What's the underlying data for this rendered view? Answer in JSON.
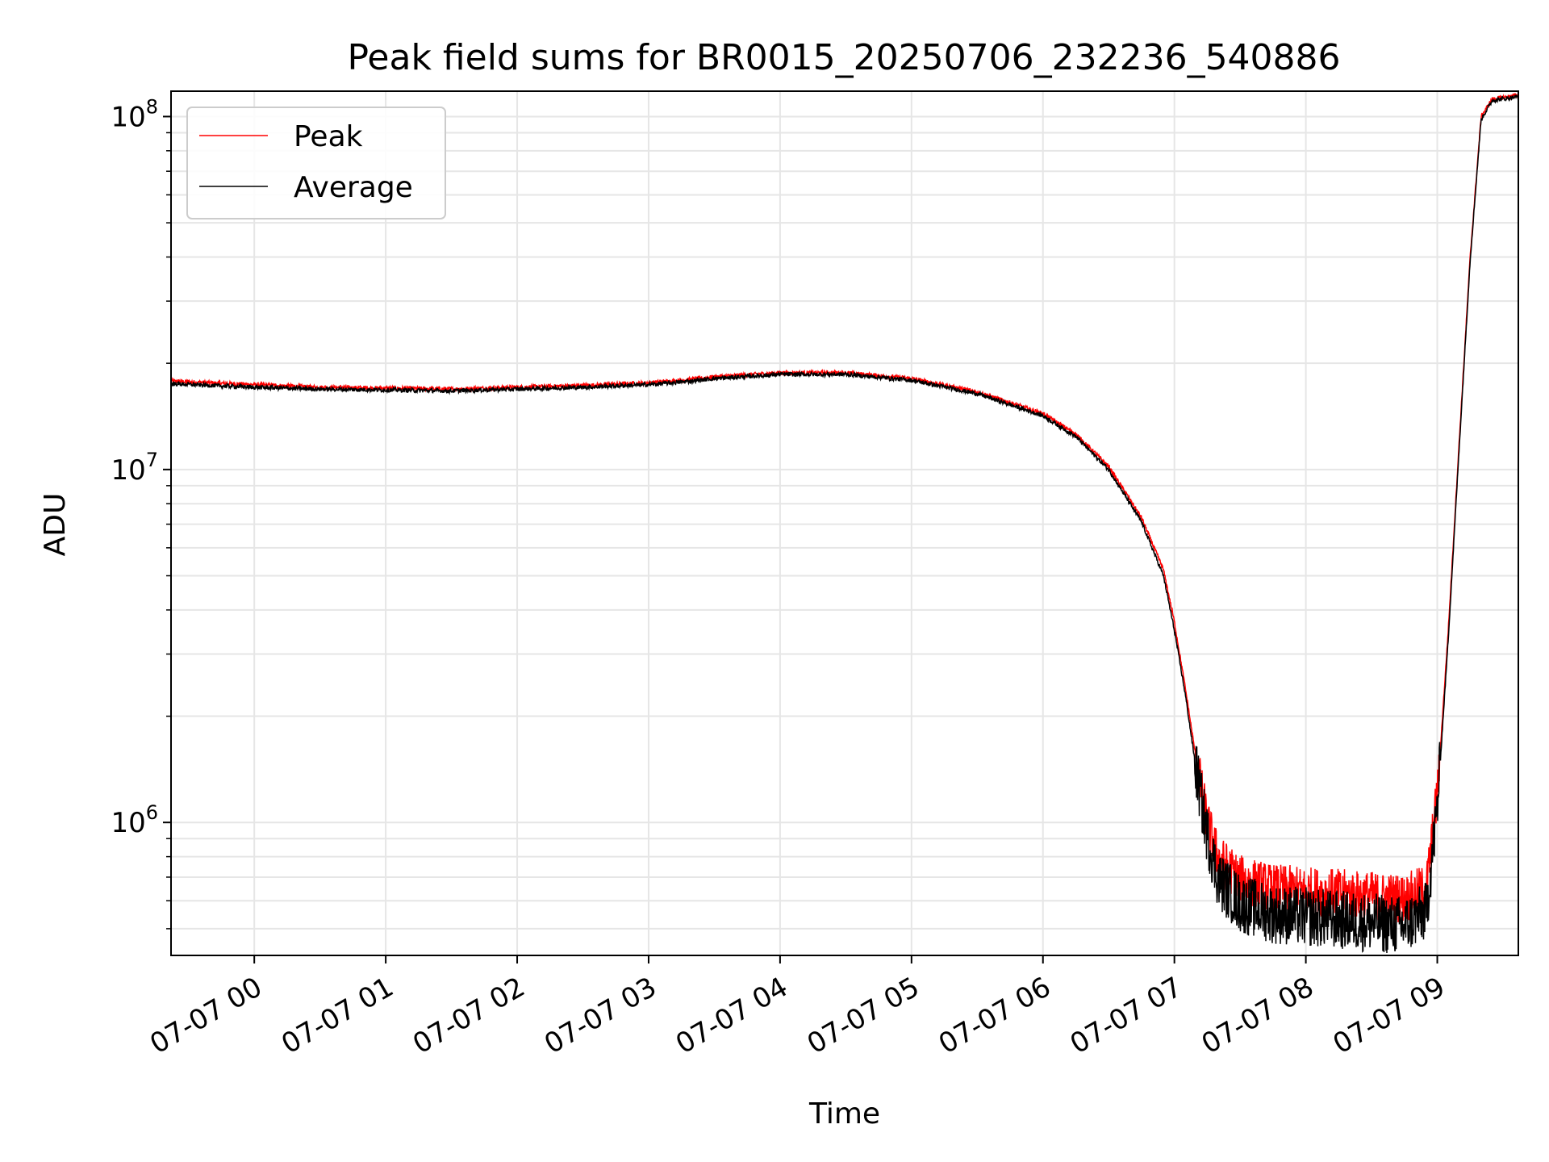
{
  "chart_data": {
    "type": "line",
    "title": "Peak field sums for BR0015_20250706_232236_540886",
    "xlabel": "Time",
    "ylabel": "ADU",
    "yscale": "log",
    "ylim": [
      420000,
      118000000
    ],
    "xlim": [
      "2025-07-06 23:22",
      "2025-07-07 09:37"
    ],
    "grid": true,
    "legend_position": "upper left",
    "x_ticks": [
      "07-07 00",
      "07-07 01",
      "07-07 02",
      "07-07 03",
      "07-07 04",
      "07-07 05",
      "07-07 06",
      "07-07 07",
      "07-07 08",
      "07-07 09"
    ],
    "y_ticks": [
      {
        "value": 1000000,
        "base": "10",
        "exp": "6"
      },
      {
        "value": 10000000,
        "base": "10",
        "exp": "7"
      },
      {
        "value": 100000000,
        "base": "10",
        "exp": "8"
      }
    ],
    "series": [
      {
        "name": "Peak",
        "color": "#ff0000",
        "x": [
          "2025-07-06 23:22",
          "2025-07-07 00:00",
          "2025-07-07 00:30",
          "2025-07-07 01:00",
          "2025-07-07 01:30",
          "2025-07-07 02:00",
          "2025-07-07 02:30",
          "2025-07-07 03:00",
          "2025-07-07 03:15",
          "2025-07-07 03:30",
          "2025-07-07 04:00",
          "2025-07-07 04:30",
          "2025-07-07 05:00",
          "2025-07-07 05:30",
          "2025-07-07 06:00",
          "2025-07-07 06:15",
          "2025-07-07 06:30",
          "2025-07-07 06:45",
          "2025-07-07 06:55",
          "2025-07-07 07:00",
          "2025-07-07 07:05",
          "2025-07-07 07:10",
          "2025-07-07 07:15",
          "2025-07-07 07:20",
          "2025-07-07 07:30",
          "2025-07-07 07:45",
          "2025-07-07 08:00",
          "2025-07-07 08:15",
          "2025-07-07 08:30",
          "2025-07-07 08:45",
          "2025-07-07 08:55",
          "2025-07-07 09:00",
          "2025-07-07 09:05",
          "2025-07-07 09:10",
          "2025-07-07 09:15",
          "2025-07-07 09:20",
          "2025-07-07 09:25",
          "2025-07-07 09:37"
        ],
        "y": [
          17800000,
          17400000,
          17100000,
          17000000,
          16900000,
          17100000,
          17300000,
          17600000,
          17900000,
          18300000,
          18800000,
          18800000,
          18100000,
          16600000,
          14400000,
          12600000,
          10200000,
          7300000,
          5200000,
          3700000,
          2400000,
          1500000,
          1000000,
          790000,
          690000,
          650000,
          640000,
          630000,
          620000,
          610000,
          650000,
          1200000,
          3500000,
          12000000,
          40000000,
          100000000,
          112000000,
          115000000
        ]
      },
      {
        "name": "Average",
        "color": "#000000",
        "x": [
          "2025-07-06 23:22",
          "2025-07-07 00:00",
          "2025-07-07 00:30",
          "2025-07-07 01:00",
          "2025-07-07 01:30",
          "2025-07-07 02:00",
          "2025-07-07 02:30",
          "2025-07-07 03:00",
          "2025-07-07 03:15",
          "2025-07-07 03:30",
          "2025-07-07 04:00",
          "2025-07-07 04:30",
          "2025-07-07 05:00",
          "2025-07-07 05:30",
          "2025-07-07 06:00",
          "2025-07-07 06:15",
          "2025-07-07 06:30",
          "2025-07-07 06:45",
          "2025-07-07 06:55",
          "2025-07-07 07:00",
          "2025-07-07 07:05",
          "2025-07-07 07:10",
          "2025-07-07 07:15",
          "2025-07-07 07:20",
          "2025-07-07 07:30",
          "2025-07-07 07:45",
          "2025-07-07 08:00",
          "2025-07-07 08:15",
          "2025-07-07 08:30",
          "2025-07-07 08:45",
          "2025-07-07 08:55",
          "2025-07-07 09:00",
          "2025-07-07 09:05",
          "2025-07-07 09:10",
          "2025-07-07 09:15",
          "2025-07-07 09:20",
          "2025-07-07 09:25",
          "2025-07-07 09:37"
        ],
        "y": [
          17500000,
          17100000,
          16900000,
          16800000,
          16700000,
          16900000,
          17100000,
          17400000,
          17700000,
          18100000,
          18600000,
          18600000,
          17900000,
          16400000,
          14200000,
          12400000,
          10000000,
          7100000,
          5000000,
          3500000,
          2300000,
          1400000,
          920000,
          690000,
          590000,
          550000,
          540000,
          530000,
          520000,
          510000,
          560000,
          1100000,
          3300000,
          11500000,
          39000000,
          98000000,
          111000000,
          114000000
        ]
      }
    ]
  }
}
